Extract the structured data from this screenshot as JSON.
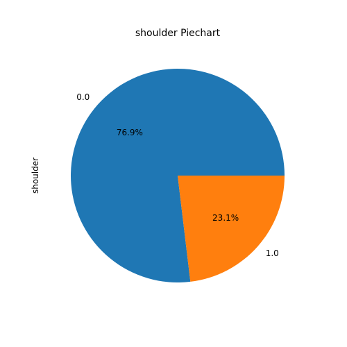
{
  "chart_data": {
    "type": "pie",
    "title": "shoulder Piechart",
    "ylabel": "shoulder",
    "slices": [
      {
        "label": "0.0",
        "value": 76.9,
        "percent_label": "76.9%",
        "color": "#1f77b4"
      },
      {
        "label": "1.0",
        "value": 23.1,
        "percent_label": "23.1%",
        "color": "#ff7f0e"
      }
    ]
  }
}
